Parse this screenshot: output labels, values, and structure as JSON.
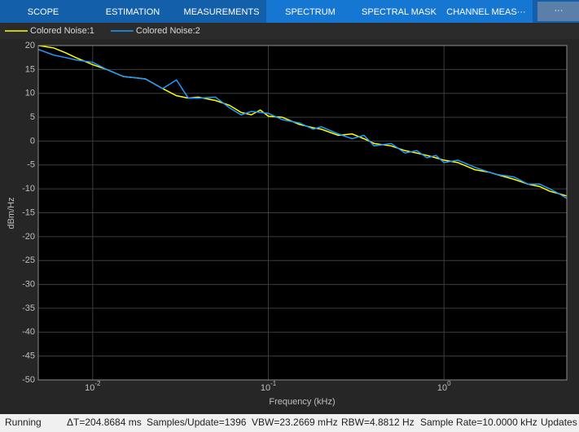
{
  "ui": {
    "tabs": [
      "SCOPE",
      "ESTIMATION",
      "MEASUREMENTS",
      "SPECTRUM",
      "SPECTRAL MASK",
      "CHANNEL MEAS···"
    ],
    "more_button": "···",
    "status": [
      "Running",
      "ΔT=204.8684 ms",
      "Samples/Update=1396",
      "VBW=23.2669 mHz",
      "RBW=4.8812 Hz",
      "Sample Rate=10.0000 kHz",
      "Updates"
    ]
  },
  "chart_data": {
    "type": "line",
    "xlabel": "Frequency (kHz)",
    "ylabel": "dBm/Hz",
    "xscale": "log",
    "grid": true,
    "legend": "top-left",
    "xlim": [
      0.0049,
      5
    ],
    "ylim": [
      -50,
      20
    ],
    "xticks": [
      {
        "value": 0.01,
        "label": "10",
        "exponent": "-2"
      },
      {
        "value": 0.1,
        "label": "10",
        "exponent": "-1"
      },
      {
        "value": 1,
        "label": "10",
        "exponent": "0"
      }
    ],
    "yticks": [
      20,
      15,
      10,
      5,
      0,
      -5,
      -10,
      -15,
      -20,
      -25,
      -30,
      -35,
      -40,
      -45,
      -50
    ],
    "x": [
      0.0049,
      0.006,
      0.007,
      0.008,
      0.01,
      0.012,
      0.015,
      0.018,
      0.02,
      0.025,
      0.03,
      0.035,
      0.04,
      0.05,
      0.06,
      0.07,
      0.08,
      0.09,
      0.1,
      0.12,
      0.15,
      0.18,
      0.2,
      0.25,
      0.3,
      0.35,
      0.4,
      0.5,
      0.6,
      0.7,
      0.8,
      0.9,
      1,
      1.2,
      1.5,
      1.8,
      2,
      2.5,
      3,
      3.5,
      4,
      4.5,
      5
    ],
    "series": [
      {
        "name": "Colored Noise:1",
        "color": "#ffff00",
        "values": [
          20,
          19.5,
          18.5,
          17.5,
          16,
          15,
          13.5,
          13.2,
          13,
          11,
          9.5,
          9,
          9.2,
          8.5,
          7.5,
          6,
          5.5,
          6.5,
          5.2,
          5,
          3.5,
          2.8,
          2.5,
          1.2,
          1.5,
          0.5,
          -0.5,
          -1,
          -2,
          -2.5,
          -3,
          -3.5,
          -4,
          -4.5,
          -6,
          -6.5,
          -7,
          -8,
          -9,
          -9.5,
          -10.5,
          -11,
          -11.5
        ]
      },
      {
        "name": "Colored Noise:2",
        "color": "#1e9bff",
        "values": [
          19.2,
          18,
          17.5,
          17,
          16.5,
          15,
          13.5,
          13.2,
          13,
          11,
          12.8,
          9,
          9,
          9.2,
          7,
          5.5,
          6.2,
          6,
          5.8,
          4.5,
          3.8,
          2.5,
          3,
          1.5,
          0.5,
          1.2,
          -1,
          -0.5,
          -2.5,
          -2,
          -3.5,
          -3,
          -4.5,
          -4,
          -5.5,
          -6.5,
          -7,
          -7.5,
          -9,
          -9,
          -10,
          -11,
          -12
        ]
      }
    ]
  }
}
